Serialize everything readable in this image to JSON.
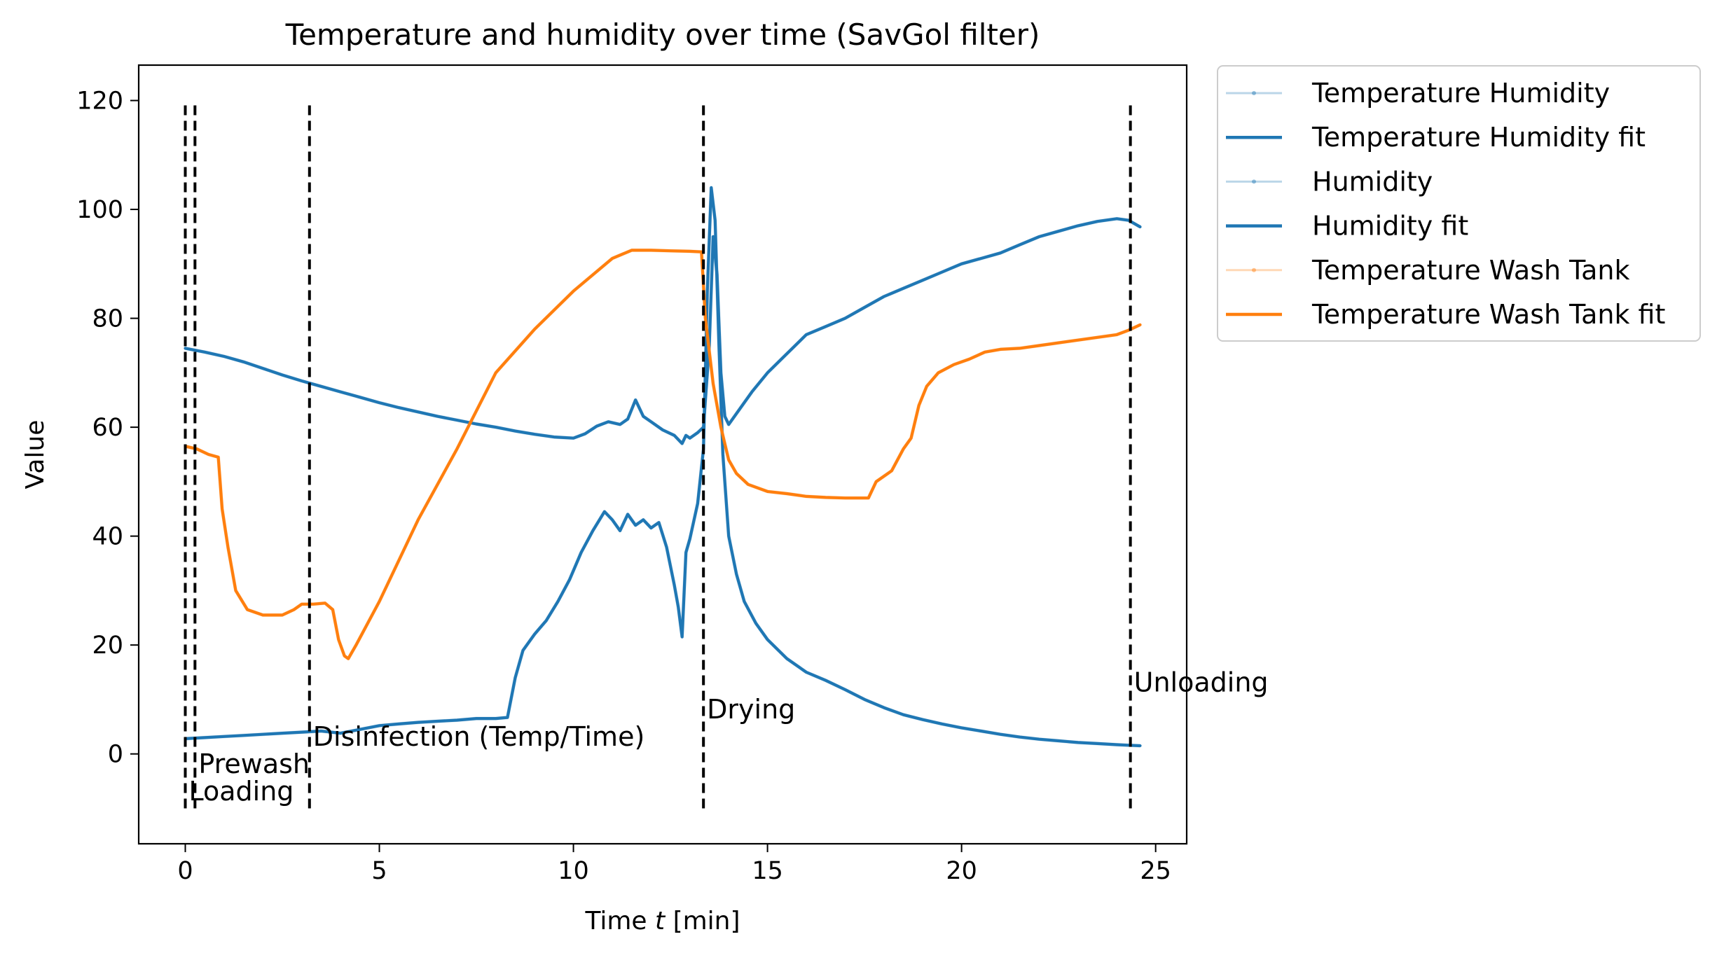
{
  "chart_data": {
    "type": "line",
    "title": "Temperature and humidity over time (SavGol filter)",
    "xlabel_prefix": "Time ",
    "xlabel_var": "t",
    "xlabel_suffix": " [min]",
    "ylabel": "Value",
    "xlim": [
      -1.2,
      25.8
    ],
    "ylim": [
      -16.5,
      126.5
    ],
    "xticks": [
      0,
      5,
      10,
      15,
      20,
      25
    ],
    "yticks": [
      0,
      20,
      40,
      60,
      80,
      100,
      120
    ],
    "grid": false,
    "legend": {
      "placement": "outside-top-right",
      "entries": [
        {
          "label": "Temperature Humidity",
          "style": "raw",
          "color": "#1f77b4"
        },
        {
          "label": "Temperature Humidity fit",
          "style": "fit",
          "color": "#1f77b4"
        },
        {
          "label": "Humidity",
          "style": "raw",
          "color": "#1f77b4"
        },
        {
          "label": "Humidity fit",
          "style": "fit",
          "color": "#1f77b4"
        },
        {
          "label": "Temperature Wash Tank",
          "style": "raw",
          "color": "#ff7f0e"
        },
        {
          "label": "Temperature Wash Tank fit",
          "style": "fit",
          "color": "#ff7f0e"
        }
      ]
    },
    "phases": [
      {
        "x": 0.0,
        "label": "Loading",
        "label_y": -8.5
      },
      {
        "x": 0.25,
        "label": "Prewash",
        "label_y": -3.5
      },
      {
        "x": 3.2,
        "label": "Disinfection (Temp/Time)",
        "label_y": 1.5
      },
      {
        "x": 13.35,
        "label": "Drying",
        "label_y": 6.5
      },
      {
        "x": 24.35,
        "label": "Unloading",
        "label_y": 11.5
      }
    ],
    "phase_line_range": [
      -10,
      120
    ],
    "series": [
      {
        "name": "Temperature Humidity fit",
        "color": "#1f77b4",
        "x": [
          0,
          0.5,
          1,
          1.5,
          2,
          2.5,
          3,
          3.5,
          4,
          4.5,
          5,
          5.5,
          6,
          6.5,
          7,
          7.5,
          8,
          8.5,
          9,
          9.5,
          10,
          10.3,
          10.6,
          10.9,
          11.2,
          11.4,
          11.6,
          11.8,
          12,
          12.3,
          12.6,
          12.8,
          12.9,
          13,
          13.2,
          13.35,
          13.5,
          13.6,
          13.7,
          13.8,
          13.9,
          14,
          14.3,
          14.6,
          15,
          15.5,
          16,
          16.5,
          17,
          17.5,
          18,
          18.5,
          19,
          19.5,
          20,
          20.5,
          21,
          21.5,
          22,
          22.5,
          23,
          23.5,
          24,
          24.3,
          24.6
        ],
        "y": [
          74.5,
          73.8,
          73,
          72,
          70.8,
          69.6,
          68.5,
          67.5,
          66.5,
          65.5,
          64.5,
          63.6,
          62.8,
          62,
          61.3,
          60.6,
          60,
          59.3,
          58.7,
          58.2,
          58,
          58.8,
          60.2,
          61,
          60.5,
          61.5,
          65,
          62,
          61,
          59.5,
          58.5,
          57,
          58.5,
          58,
          59,
          60,
          75,
          95,
          88,
          70,
          62,
          60.5,
          63.5,
          66.5,
          70,
          73.5,
          77,
          78.5,
          80,
          82,
          84,
          85.5,
          87,
          88.5,
          90,
          91,
          92,
          93.5,
          95,
          96,
          97,
          97.8,
          98.3,
          98,
          96.8
        ]
      },
      {
        "name": "Humidity fit",
        "color": "#1f77b4",
        "x": [
          0,
          0.5,
          1,
          1.5,
          2,
          2.5,
          3,
          3.5,
          4,
          4.5,
          5,
          5.5,
          6,
          6.5,
          7,
          7.5,
          8,
          8.3,
          8.5,
          8.7,
          9,
          9.3,
          9.6,
          9.9,
          10.2,
          10.5,
          10.8,
          11,
          11.2,
          11.4,
          11.6,
          11.8,
          12,
          12.2,
          12.4,
          12.6,
          12.7,
          12.8,
          12.9,
          13,
          13.2,
          13.35,
          13.45,
          13.55,
          13.65,
          13.75,
          13.85,
          14,
          14.2,
          14.4,
          14.7,
          15,
          15.5,
          16,
          16.5,
          17,
          17.5,
          18,
          18.5,
          19,
          19.5,
          20,
          20.5,
          21,
          21.5,
          22,
          22.5,
          23,
          23.5,
          24,
          24.3,
          24.6
        ],
        "y": [
          2.8,
          3,
          3.2,
          3.4,
          3.6,
          3.8,
          4,
          4.2,
          3.8,
          4.5,
          5.2,
          5.5,
          5.8,
          6,
          6.2,
          6.5,
          6.5,
          6.7,
          14,
          19,
          22,
          24.5,
          28,
          32,
          37,
          41,
          44.5,
          43,
          41,
          44,
          42,
          43,
          41.5,
          42.5,
          38,
          31,
          27,
          21.5,
          37,
          39.5,
          46,
          56,
          85,
          104,
          98,
          75,
          55,
          40,
          33,
          28,
          24,
          21,
          17.5,
          15,
          13.5,
          11.8,
          10,
          8.5,
          7.2,
          6.3,
          5.5,
          4.8,
          4.2,
          3.6,
          3.1,
          2.7,
          2.4,
          2.1,
          1.9,
          1.7,
          1.6,
          1.5
        ]
      },
      {
        "name": "Temperature Wash Tank fit",
        "color": "#ff7f0e",
        "x": [
          0,
          0.3,
          0.6,
          0.85,
          0.95,
          1.1,
          1.3,
          1.6,
          2,
          2.5,
          2.8,
          3,
          3.3,
          3.6,
          3.8,
          3.95,
          4.1,
          4.2,
          4.4,
          4.7,
          5,
          6,
          7,
          8,
          9,
          10,
          11,
          11.5,
          12,
          12.5,
          13,
          13.3,
          13.4,
          13.6,
          13.8,
          14,
          14.2,
          14.5,
          15,
          15.5,
          16,
          16.5,
          17,
          17.6,
          17.8,
          18.2,
          18.5,
          18.7,
          18.9,
          19.1,
          19.4,
          19.8,
          20.2,
          20.6,
          21,
          21.5,
          22,
          23,
          23.5,
          24,
          24.3,
          24.6
        ],
        "y": [
          56.5,
          56,
          55,
          54.5,
          45,
          38,
          30,
          26.5,
          25.5,
          25.5,
          26.5,
          27.5,
          27.5,
          27.7,
          26.5,
          21,
          18,
          17.5,
          20,
          24,
          28,
          43,
          56,
          70,
          78,
          85,
          91,
          92.5,
          92.5,
          92.4,
          92.3,
          92.2,
          80,
          68,
          60,
          54,
          51.5,
          49.5,
          48.2,
          47.8,
          47.3,
          47.1,
          47,
          47,
          50,
          52,
          56,
          58,
          64,
          67.5,
          70,
          71.5,
          72.5,
          73.8,
          74.3,
          74.5,
          75,
          76,
          76.5,
          77,
          77.8,
          78.8
        ]
      }
    ]
  }
}
